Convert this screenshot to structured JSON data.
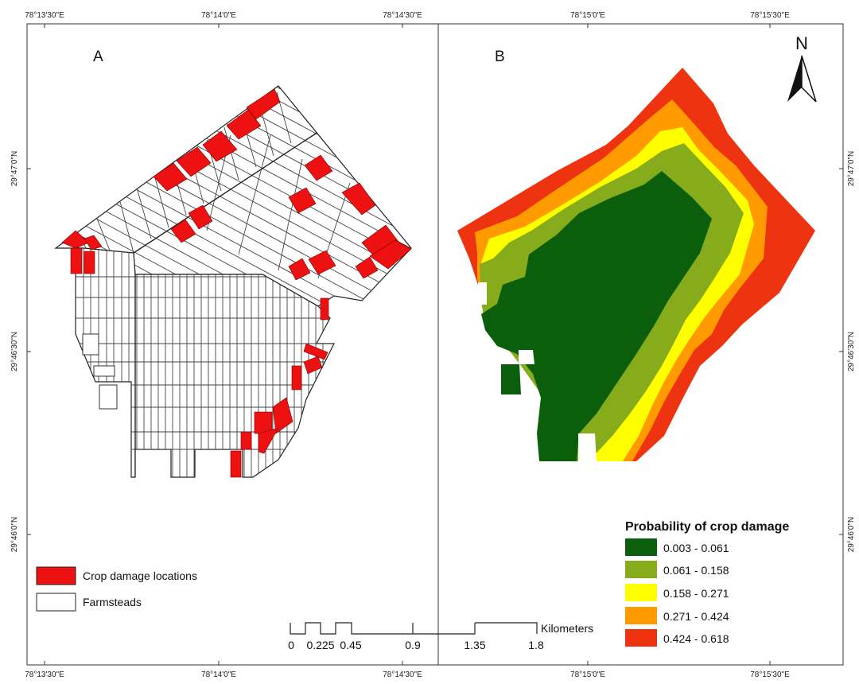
{
  "graticule": {
    "top": [
      "78°13'30\"E",
      "78°14'0\"E",
      "78°14'30\"E",
      "78°15'0\"E",
      "78°15'30\"E"
    ],
    "bottom": [
      "78°13'30\"E",
      "78°14'0\"E",
      "78°14'30\"E",
      "78°15'0\"E",
      "78°15'30\"E"
    ],
    "left": [
      "29°47'0\"N",
      "29°46'30\"N",
      "29°46'0\"N"
    ],
    "right": [
      "29°47'0\"N",
      "29°46'30\"N",
      "29°46'0\"N"
    ]
  },
  "panels": {
    "a": "A",
    "b": "B"
  },
  "north_label": "N",
  "legend_a": {
    "items": [
      {
        "label": "Crop damage locations",
        "color": "#ee1111"
      },
      {
        "label": "Farmsteads",
        "color": "#ffffff"
      }
    ]
  },
  "legend_b": {
    "title": "Probability of crop damage",
    "classes": [
      {
        "label": "0.003 - 0.061",
        "color": "#0b5e0b"
      },
      {
        "label": "0.061 - 0.158",
        "color": "#86ac1c"
      },
      {
        "label": "0.158 - 0.271",
        "color": "#ffff00"
      },
      {
        "label": "0.271 - 0.424",
        "color": "#ff9a00"
      },
      {
        "label": "0.424 - 0.618",
        "color": "#ee3311"
      }
    ]
  },
  "scalebar": {
    "ticks": [
      "0",
      "0.225",
      "0.45",
      "0.9",
      "1.35",
      "1.8"
    ],
    "unit": "Kilometers"
  }
}
